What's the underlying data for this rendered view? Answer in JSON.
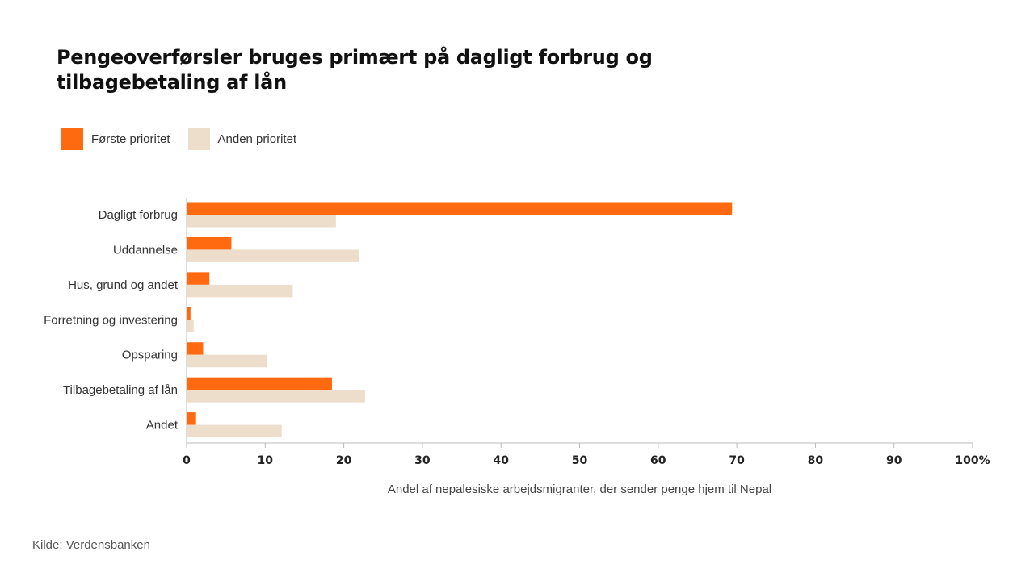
{
  "title": "Pengeoverførsler bruges primært på dagligt forbrug og tilbagebetaling af lån",
  "source": "Kilde: Verdensbanken",
  "colors": {
    "first": "#FF6A10",
    "second": "#EDDDCB"
  },
  "chart_data": {
    "type": "bar",
    "orientation": "horizontal",
    "categories": [
      "Dagligt forbrug",
      "Uddannelse",
      "Hus, grund og andet",
      "Forretning og investering",
      "Opsparing",
      "Tilbagebetaling af lån",
      "Andet"
    ],
    "series": [
      {
        "name": "Første prioritet",
        "values": [
          69.4,
          5.7,
          2.9,
          0.5,
          2.1,
          18.5,
          1.2
        ]
      },
      {
        "name": "Anden prioritet",
        "values": [
          19,
          21.9,
          13.5,
          0.9,
          10.2,
          22.7,
          12.1
        ]
      }
    ],
    "xlabel": "Andel af nepalesiske arbejdsmigranter, der sender penge hjem til Nepal",
    "xlim": [
      0,
      100
    ],
    "xticks": [
      "0",
      "10",
      "20",
      "30",
      "40",
      "50",
      "60",
      "70",
      "80",
      "90",
      "100%"
    ],
    "legend_position": "top-left",
    "grid": false
  }
}
